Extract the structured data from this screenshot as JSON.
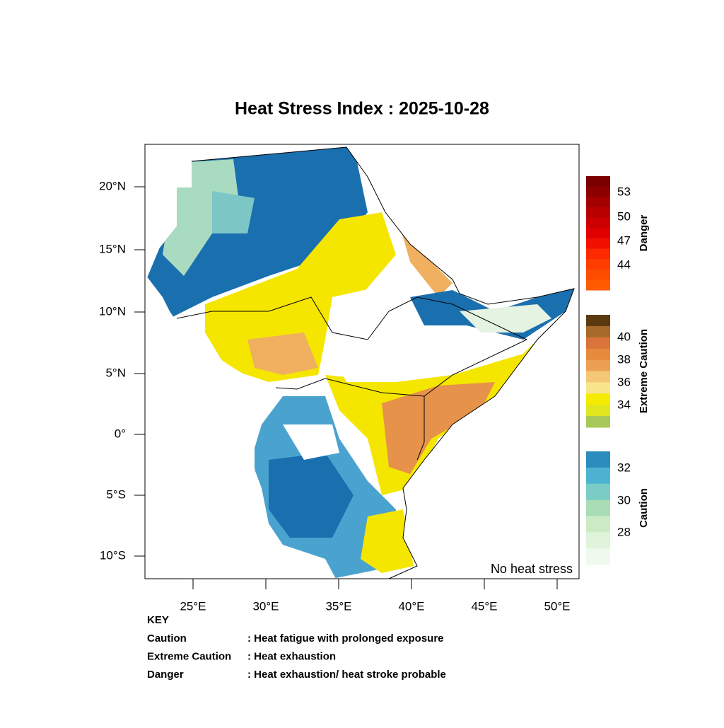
{
  "title": "Heat Stress Index : 2025-10-28",
  "lat_ticks": [
    "20°N",
    "15°N",
    "10°N",
    "5°N",
    "0°",
    "5°S",
    "10°S"
  ],
  "lon_ticks": [
    "25°E",
    "30°E",
    "35°E",
    "40°E",
    "45°E",
    "50°E"
  ],
  "annotation": "No heat stress",
  "legends": [
    {
      "name": "Danger",
      "labels": [
        "53",
        "50",
        "47",
        "44"
      ]
    },
    {
      "name": "Extreme Caution",
      "labels": [
        "40",
        "38",
        "36",
        "34"
      ]
    },
    {
      "name": "Caution",
      "labels": [
        "32",
        "30",
        "28"
      ]
    }
  ],
  "key": {
    "title": "KEY",
    "rows": [
      [
        "Caution",
        ": Heat fatigue with prolonged exposure"
      ],
      [
        "Extreme Caution",
        " : Heat exhaustion"
      ],
      [
        "Danger",
        ": Heat exhaustion/ heat stroke probable"
      ]
    ]
  }
}
